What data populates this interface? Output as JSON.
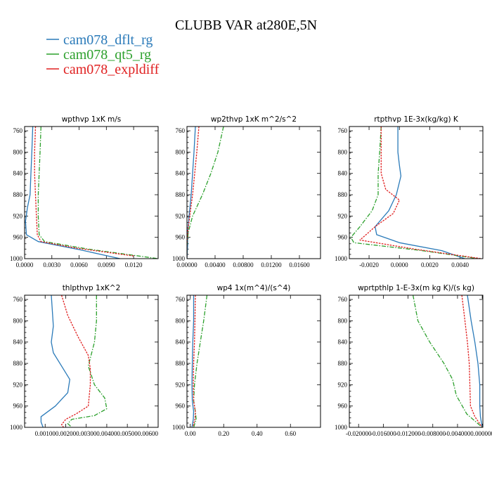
{
  "figure": {
    "title": "CLUBB VAR at280E,5N",
    "colors": {
      "dflt": "#2a7ab9",
      "qt5": "#2ca02c",
      "expldiff": "#e02020"
    },
    "legend": [
      {
        "label": "cam078_dflt_rg",
        "color": "#2a7ab9"
      },
      {
        "label": "cam078_qt5_rg",
        "color": "#2ca02c"
      },
      {
        "label": "cam078_expldiff",
        "color": "#e02020"
      }
    ]
  },
  "chart_data": [
    {
      "type": "line",
      "title": "wpthvp   1xK m/s",
      "xlim": [
        0,
        0.0147
      ],
      "ylim": [
        1000,
        752
      ],
      "xticks": [
        "0.0000",
        "0.0030",
        "0.0060",
        "0.0090",
        "0.0120"
      ],
      "xtick_values": [
        0,
        0.003,
        0.006,
        0.009,
        0.012
      ],
      "yticks": [
        "760",
        "800",
        "840",
        "880",
        "920",
        "960",
        "1000"
      ],
      "ytick_values": [
        760,
        800,
        840,
        880,
        920,
        960,
        1000
      ],
      "series": [
        {
          "name": "cam078_dflt_rg",
          "x": [
            0.0009,
            0.0008,
            0.0007,
            0.0006,
            0.0003,
            0.0001,
            0.0002,
            0.0015,
            0.006,
            0.0105
          ],
          "y": [
            752,
            800,
            840,
            880,
            905,
            930,
            955,
            968,
            983,
            1000
          ]
        },
        {
          "name": "cam078_qt5_rg",
          "x": [
            0.0018,
            0.0017,
            0.0016,
            0.0015,
            0.0015,
            0.0016,
            0.0022,
            0.007,
            0.0147
          ],
          "y": [
            752,
            800,
            840,
            880,
            920,
            955,
            968,
            982,
            1000
          ]
        },
        {
          "name": "cam078_expldiff",
          "x": [
            0.0012,
            0.0011,
            0.0011,
            0.0012,
            0.0013,
            0.0014,
            0.0018,
            0.0056,
            0.012
          ],
          "y": [
            752,
            800,
            840,
            880,
            920,
            955,
            968,
            980,
            995
          ]
        }
      ]
    },
    {
      "type": "line",
      "title": "wp2thvp   1xK m^2/s^2",
      "xlim": [
        0,
        0.019
      ],
      "ylim": [
        1000,
        752
      ],
      "xticks": [
        "0.00000",
        "0.00400",
        "0.00800",
        "0.01200",
        "0.01600"
      ],
      "xtick_values": [
        0,
        0.004,
        0.008,
        0.012,
        0.016
      ],
      "yticks": [
        "760",
        "800",
        "840",
        "880",
        "920",
        "960",
        "1000"
      ],
      "ytick_values": [
        760,
        800,
        840,
        880,
        920,
        960,
        1000
      ],
      "series": [
        {
          "name": "cam078_dflt_rg",
          "x": [
            0.0012,
            0.001,
            0.0008,
            0.0006,
            0.0003,
            0.0001,
            0.0001,
            0.0
          ],
          "y": [
            752,
            800,
            840,
            880,
            920,
            950,
            975,
            1000
          ]
        },
        {
          "name": "cam078_qt5_rg",
          "x": [
            0.0052,
            0.0044,
            0.0034,
            0.0022,
            0.0008,
            0.0002,
            0.0,
            0.0
          ],
          "y": [
            752,
            800,
            840,
            880,
            920,
            950,
            975,
            1000
          ]
        },
        {
          "name": "cam078_expldiff",
          "x": [
            0.0017,
            0.0014,
            0.0011,
            0.0008,
            0.0004,
            0.0001,
            0.0,
            0.0
          ],
          "y": [
            752,
            800,
            840,
            880,
            920,
            950,
            975,
            1000
          ]
        }
      ]
    },
    {
      "type": "line",
      "title": "rtpthvp   1E-3x(kg/kg) K",
      "xlim": [
        -0.0033,
        0.0055
      ],
      "ylim": [
        1000,
        752
      ],
      "xticks": [
        "-0.0020",
        "0.0000",
        "0.0020",
        "0.0040"
      ],
      "xtick_values": [
        -0.002,
        0,
        0.002,
        0.004
      ],
      "yticks": [
        "760",
        "800",
        "840",
        "880",
        "920",
        "960",
        "1000"
      ],
      "ytick_values": [
        760,
        800,
        840,
        880,
        920,
        960,
        1000
      ],
      "series": [
        {
          "name": "cam078_dflt_rg",
          "x": [
            -0.0001,
            -0.0001,
            0.0,
            0.0001,
            -0.0002,
            -0.0007,
            -0.0016,
            -0.0015,
            0.0,
            0.0028,
            0.0043
          ],
          "y": [
            752,
            800,
            825,
            845,
            880,
            910,
            940,
            955,
            970,
            985,
            1000
          ]
        },
        {
          "name": "cam078_qt5_rg",
          "x": [
            -0.0012,
            -0.0013,
            -0.0014,
            -0.0014,
            -0.0018,
            -0.0026,
            -0.0032,
            -0.003,
            0.0015,
            0.0052
          ],
          "y": [
            752,
            800,
            840,
            880,
            910,
            940,
            960,
            970,
            985,
            1000
          ]
        },
        {
          "name": "cam078_expldiff",
          "x": [
            -0.0012,
            -0.0012,
            -0.0012,
            -0.0009,
            0.0,
            -0.0004,
            -0.0016,
            -0.0022,
            -0.0026,
            0.001,
            0.0054
          ],
          "y": [
            752,
            800,
            840,
            870,
            890,
            915,
            940,
            955,
            965,
            982,
            1000
          ]
        }
      ]
    },
    {
      "type": "line",
      "title": "thlpthvp   1xK^2",
      "xlim": [
        0.0,
        0.0065
      ],
      "ylim": [
        1000,
        752
      ],
      "xticks": [
        "0.00100",
        "0.00200",
        "0.00300",
        "0.00400",
        "0.00500",
        "0.00600"
      ],
      "xtick_values": [
        0.001,
        0.002,
        0.003,
        0.004,
        0.005,
        0.006
      ],
      "yticks": [
        "760",
        "800",
        "840",
        "880",
        "920",
        "960",
        "1000"
      ],
      "ytick_values": [
        760,
        800,
        840,
        880,
        920,
        960,
        1000
      ],
      "series": [
        {
          "name": "cam078_dflt_rg",
          "x": [
            0.0013,
            0.0014,
            0.0013,
            0.0014,
            0.0018,
            0.0022,
            0.0021,
            0.0015,
            0.0008,
            0.0008,
            0.0009
          ],
          "y": [
            752,
            810,
            840,
            860,
            885,
            910,
            935,
            960,
            980,
            990,
            1000
          ]
        },
        {
          "name": "cam078_qt5_rg",
          "x": [
            0.0035,
            0.0035,
            0.0034,
            0.0031,
            0.0034,
            0.0039,
            0.004,
            0.0034,
            0.0023,
            0.0021,
            0.0023
          ],
          "y": [
            752,
            800,
            840,
            885,
            920,
            945,
            965,
            978,
            985,
            993,
            1000
          ]
        },
        {
          "name": "cam078_expldiff",
          "x": [
            0.0018,
            0.0021,
            0.0026,
            0.0031,
            0.0032,
            0.0032,
            0.0031,
            0.0025,
            0.002,
            0.0018,
            0.0019
          ],
          "y": [
            752,
            790,
            830,
            865,
            890,
            920,
            960,
            975,
            985,
            995,
            1000
          ]
        }
      ]
    },
    {
      "type": "line",
      "title": "wp4   1x(m^4)/(s^4)",
      "xlim": [
        -0.02,
        0.78
      ],
      "ylim": [
        1000,
        752
      ],
      "xticks": [
        "0.00",
        "0.20",
        "0.40",
        "0.60"
      ],
      "xtick_values": [
        0,
        0.2,
        0.4,
        0.6
      ],
      "yticks": [
        "760",
        "800",
        "840",
        "880",
        "920",
        "960",
        "1000"
      ],
      "ytick_values": [
        760,
        800,
        840,
        880,
        920,
        960,
        1000
      ],
      "series": [
        {
          "name": "cam078_dflt_rg",
          "x": [
            0.02,
            0.02,
            0.015,
            0.012,
            0.01,
            0.012,
            0.02,
            0.018,
            0.01
          ],
          "y": [
            752,
            800,
            840,
            880,
            920,
            950,
            970,
            985,
            1000
          ]
        },
        {
          "name": "cam078_qt5_rg",
          "x": [
            0.1,
            0.08,
            0.06,
            0.04,
            0.025,
            0.02,
            0.03,
            0.035,
            0.02
          ],
          "y": [
            752,
            800,
            840,
            880,
            920,
            950,
            970,
            985,
            1000
          ]
        },
        {
          "name": "cam078_expldiff",
          "x": [
            0.03,
            0.028,
            0.025,
            0.02,
            0.018,
            0.02,
            0.03,
            0.028,
            0.015
          ],
          "y": [
            752,
            800,
            840,
            880,
            920,
            950,
            970,
            985,
            1000
          ]
        }
      ]
    },
    {
      "type": "line",
      "title": "wprtpthlp   1-E-3x(m kg K)/(s kg)",
      "xlim": [
        -0.0215,
        0.0001
      ],
      "ylim": [
        1000,
        752
      ],
      "xticks": [
        "-0.020000",
        "-0.016000",
        "-0.012000",
        "-0.008000",
        "-0.004000",
        "0.000000"
      ],
      "xtick_values": [
        -0.02,
        -0.016,
        -0.012,
        -0.008,
        -0.004,
        0
      ],
      "yticks": [
        "760",
        "800",
        "840",
        "880",
        "920",
        "960",
        "1000"
      ],
      "ytick_values": [
        760,
        800,
        840,
        880,
        920,
        960,
        1000
      ],
      "series": [
        {
          "name": "cam078_dflt_rg",
          "x": [
            -0.0024,
            -0.0018,
            -0.0012,
            -0.0007,
            -0.0004,
            -0.0004,
            -0.0003,
            0.0
          ],
          "y": [
            752,
            800,
            840,
            880,
            920,
            960,
            980,
            1000
          ]
        },
        {
          "name": "cam078_qt5_rg",
          "x": [
            -0.0112,
            -0.0104,
            -0.0085,
            -0.0062,
            -0.0048,
            -0.0042,
            -0.0025,
            0.0
          ],
          "y": [
            752,
            800,
            840,
            880,
            910,
            940,
            975,
            1000
          ]
        },
        {
          "name": "cam078_expldiff",
          "x": [
            -0.0033,
            -0.0028,
            -0.0024,
            -0.0021,
            -0.002,
            -0.0019,
            -0.0012,
            0.0
          ],
          "y": [
            752,
            800,
            840,
            880,
            920,
            960,
            980,
            1000
          ]
        }
      ]
    }
  ]
}
